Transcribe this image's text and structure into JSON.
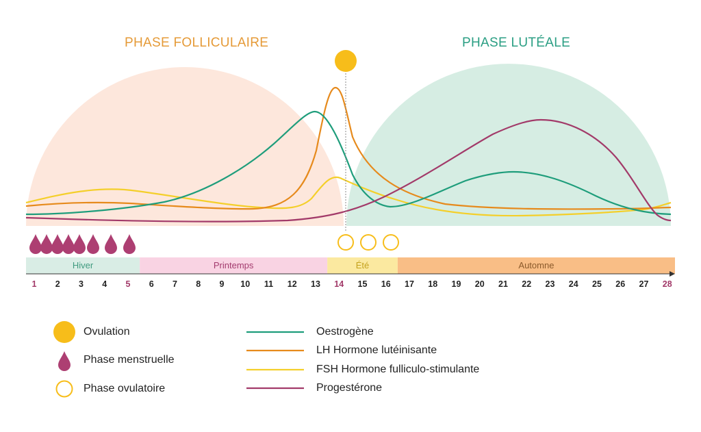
{
  "phases": {
    "follicular": "PHASE FOLLICULAIRE",
    "luteal": "PHASE LUTÉALE"
  },
  "colors": {
    "follicular_bg": "#fde7dc",
    "luteal_bg": "#d6ede3",
    "follicular_title": "#e59a37",
    "luteal_title": "#2a9e83",
    "oestrogen": "#1e9d7b",
    "lh": "#e68a1c",
    "fsh": "#f4cf2a",
    "progesterone": "#a23a69",
    "ovulation": "#f7bd1a",
    "menstrual": "#ad3f72"
  },
  "seasons": [
    {
      "label": "Hiver",
      "from_day": 1,
      "to_day": 5,
      "bg": "#d9ede5",
      "fg": "#3f9a7f"
    },
    {
      "label": "Printemps",
      "from_day": 6,
      "to_day": 13,
      "bg": "#f9d3e3",
      "fg": "#a33b6e"
    },
    {
      "label": "Été",
      "from_day": 14,
      "to_day": 16,
      "bg": "#fbe9a0",
      "fg": "#c4a21d"
    },
    {
      "label": "Automne",
      "from_day": 17,
      "to_day": 28,
      "bg": "#f9be86",
      "fg": "#8b5a2b"
    }
  ],
  "days": [
    "1",
    "2",
    "3",
    "4",
    "5",
    "6",
    "7",
    "8",
    "9",
    "10",
    "11",
    "12",
    "13",
    "14",
    "15",
    "16",
    "17",
    "18",
    "19",
    "20",
    "21",
    "22",
    "23",
    "24",
    "25",
    "26",
    "27",
    "28"
  ],
  "highlight_days": {
    "1": "#a23a69",
    "5": "#a23a69",
    "14": "#a23a69",
    "28": "#a23a69"
  },
  "menstrual_drops": 8,
  "ovulatory_circles": 3,
  "legend": {
    "ovulation": "Ovulation",
    "menstrual": "Phase menstruelle",
    "ovulatory": "Phase ovulatoire",
    "oestrogen": "Oestrogène",
    "lh": "LH Hormone lutéinisante",
    "fsh": "FSH Hormone fulliculo-stimulante",
    "progesterone": "Progestérone"
  }
}
